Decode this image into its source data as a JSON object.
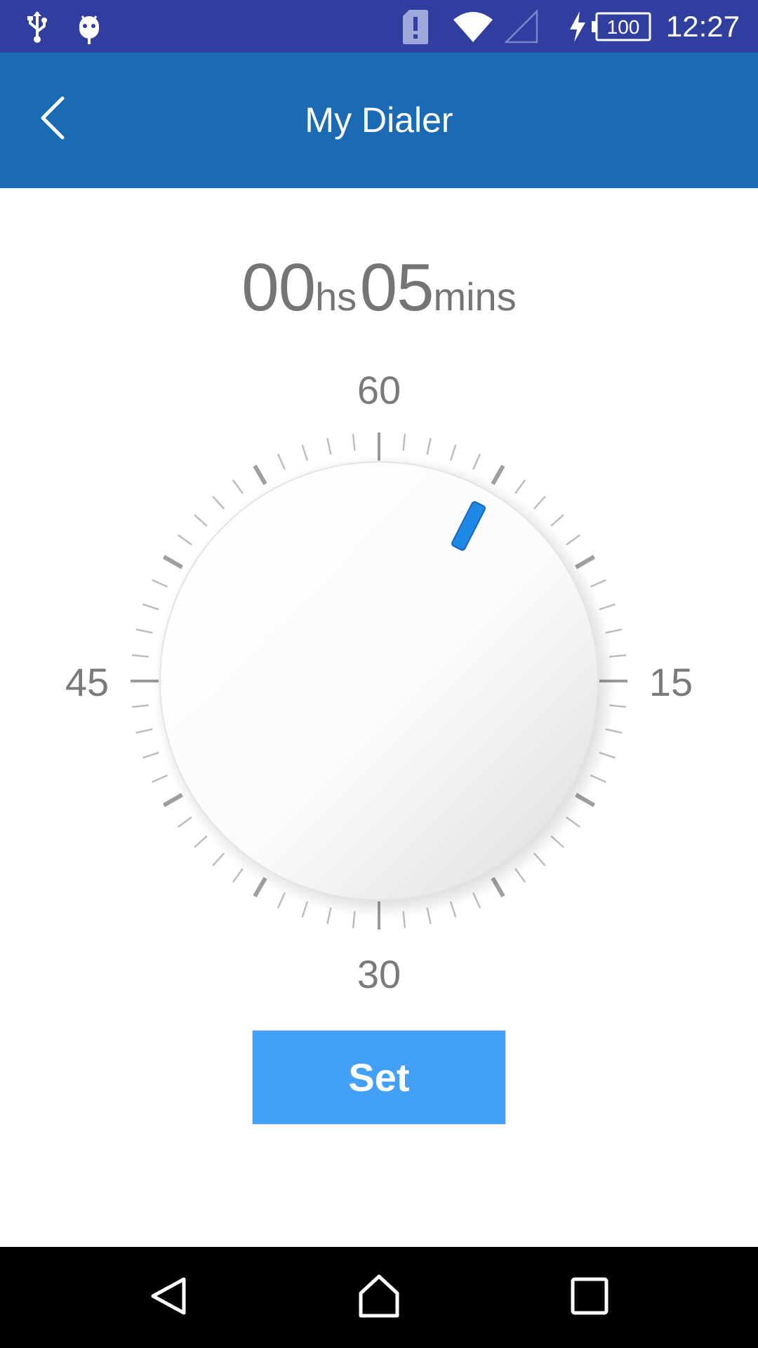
{
  "status_bar": {
    "time": "12:27",
    "battery_level": "100",
    "icons": [
      "usb-icon",
      "android-debug-icon",
      "sim-alert-icon",
      "wifi-icon",
      "signal-icon",
      "charging-icon",
      "battery-icon"
    ]
  },
  "app_bar": {
    "title": "My Dialer",
    "back_icon": "chevron-left-icon"
  },
  "timer": {
    "hours_value": "00",
    "hours_unit": "hs",
    "minutes_value": "05",
    "minutes_unit": "mins"
  },
  "dial": {
    "labels": {
      "top": "60",
      "right": "15",
      "bottom": "30",
      "left": "45"
    },
    "value_minutes": 5,
    "max_minutes": 60,
    "tick_count": 60,
    "indicator_color": "#1e88e5"
  },
  "actions": {
    "set_label": "Set"
  },
  "nav_bar": {
    "back": "back-triangle-icon",
    "home": "home-icon",
    "recents": "recents-square-icon"
  },
  "colors": {
    "status_bar": "#303f9f",
    "app_bar": "#1b6ab4",
    "button": "#42a0f6"
  }
}
